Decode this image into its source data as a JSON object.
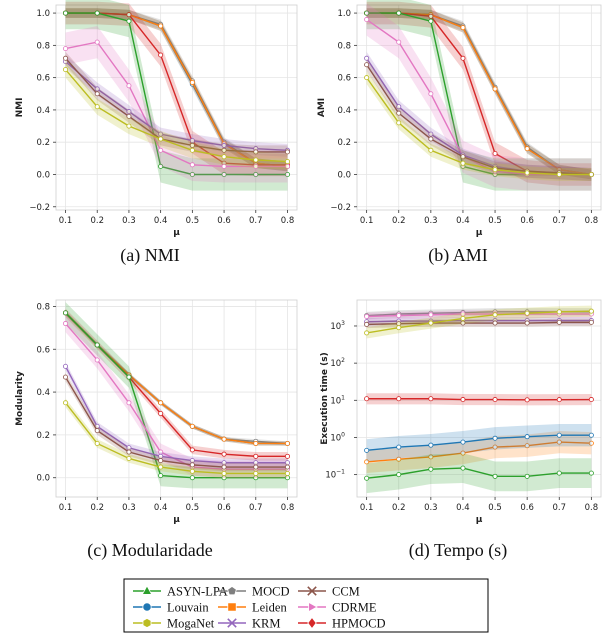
{
  "captions": [
    "(a)  NMI",
    "(b)  AMI",
    "(c)  Modularidade",
    "(d)  Tempo (s)"
  ],
  "legend": [
    {
      "name": "ASYN-LPA",
      "color": "#2ca02c",
      "marker": "triangle"
    },
    {
      "name": "Louvain",
      "color": "#1f77b4",
      "marker": "circle"
    },
    {
      "name": "MogaNet",
      "color": "#bcbd22",
      "marker": "hexagon"
    },
    {
      "name": "MOCD",
      "color": "#7f7f7f",
      "marker": "pentagon"
    },
    {
      "name": "Leiden",
      "color": "#ff7f0e",
      "marker": "square"
    },
    {
      "name": "KRM",
      "color": "#9467bd",
      "marker": "x"
    },
    {
      "name": "CCM",
      "color": "#8c564b",
      "marker": "x"
    },
    {
      "name": "CDRME",
      "color": "#e377c2",
      "marker": "triangle-right"
    },
    {
      "name": "HPMOCD",
      "color": "#d62728",
      "marker": "diamond"
    }
  ],
  "chart_data": [
    {
      "type": "line",
      "ylabel": "NMI",
      "xlabel": "μ",
      "scale": "linear",
      "x": [
        0.1,
        0.2,
        0.3,
        0.4,
        0.5,
        0.6,
        0.7,
        0.8
      ],
      "xticks": [
        "0.1",
        "0.2",
        "0.3",
        "0.4",
        "0.5",
        "0.6",
        "0.7",
        "0.8"
      ],
      "ylim": [
        -0.22,
        1.05
      ],
      "yticks": [
        {
          "v": -0.2,
          "t": "−0.2"
        },
        {
          "v": 0,
          "t": "0.0"
        },
        {
          "v": 0.2,
          "t": "0.2"
        },
        {
          "v": 0.4,
          "t": "0.4"
        },
        {
          "v": 0.6,
          "t": "0.6"
        },
        {
          "v": 0.8,
          "t": "0.8"
        },
        {
          "v": 1.0,
          "t": "1.0"
        }
      ],
      "series": [
        {
          "name": "MOCD",
          "values": [
            1.0,
            1.0,
            0.99,
            0.93,
            0.58,
            0.2,
            0.07,
            0.05
          ],
          "band": 0.03
        },
        {
          "name": "Louvain",
          "values": [
            1.0,
            1.0,
            0.99,
            0.92,
            0.56,
            0.19,
            0.07,
            0.05
          ],
          "band": 0.03
        },
        {
          "name": "Leiden",
          "values": [
            1.0,
            1.0,
            0.99,
            0.92,
            0.57,
            0.19,
            0.07,
            0.05
          ],
          "band": 0.03
        },
        {
          "name": "HPMOCD",
          "values": [
            1.0,
            1.0,
            0.99,
            0.74,
            0.2,
            0.07,
            0.06,
            0.06
          ],
          "band": 0.07
        },
        {
          "name": "ASYN-LPA",
          "values": [
            1.0,
            1.0,
            0.95,
            0.05,
            0.0,
            0.0,
            0.0,
            0.0
          ],
          "band": 0.1
        },
        {
          "name": "CDRME",
          "values": [
            0.78,
            0.82,
            0.55,
            0.15,
            0.06,
            0.05,
            0.05,
            0.05
          ],
          "band": 0.1
        },
        {
          "name": "KRM",
          "values": [
            0.7,
            0.53,
            0.39,
            0.25,
            0.21,
            0.18,
            0.16,
            0.15
          ],
          "band": 0.04
        },
        {
          "name": "CCM",
          "values": [
            0.72,
            0.5,
            0.36,
            0.22,
            0.18,
            0.15,
            0.14,
            0.14
          ],
          "band": 0.04
        },
        {
          "name": "MogaNet",
          "values": [
            0.65,
            0.42,
            0.3,
            0.22,
            0.15,
            0.11,
            0.09,
            0.08
          ],
          "band": 0.05
        }
      ]
    },
    {
      "type": "line",
      "ylabel": "AMI",
      "xlabel": "μ",
      "scale": "linear",
      "x": [
        0.1,
        0.2,
        0.3,
        0.4,
        0.5,
        0.6,
        0.7,
        0.8
      ],
      "xticks": [
        "0.1",
        "0.2",
        "0.3",
        "0.4",
        "0.5",
        "0.6",
        "0.7",
        "0.8"
      ],
      "ylim": [
        -0.22,
        1.05
      ],
      "yticks": [
        {
          "v": -0.2,
          "t": "−0.2"
        },
        {
          "v": 0,
          "t": "0.0"
        },
        {
          "v": 0.2,
          "t": "0.2"
        },
        {
          "v": 0.4,
          "t": "0.4"
        },
        {
          "v": 0.6,
          "t": "0.6"
        },
        {
          "v": 0.8,
          "t": "0.8"
        },
        {
          "v": 1.0,
          "t": "1.0"
        }
      ],
      "series": [
        {
          "name": "MOCD",
          "values": [
            1.0,
            1.0,
            0.99,
            0.92,
            0.54,
            0.17,
            0.03,
            0.0
          ],
          "band": 0.03
        },
        {
          "name": "Louvain",
          "values": [
            1.0,
            1.0,
            0.99,
            0.91,
            0.53,
            0.16,
            0.03,
            0.0
          ],
          "band": 0.03
        },
        {
          "name": "Leiden",
          "values": [
            1.0,
            1.0,
            0.99,
            0.91,
            0.53,
            0.16,
            0.03,
            0.0
          ],
          "band": 0.03
        },
        {
          "name": "HPMOCD",
          "values": [
            1.0,
            1.0,
            0.98,
            0.72,
            0.13,
            0.02,
            0.0,
            0.0
          ],
          "band": 0.07
        },
        {
          "name": "ASYN-LPA",
          "values": [
            1.0,
            1.0,
            0.95,
            0.05,
            0.0,
            0.0,
            0.0,
            0.0
          ],
          "band": 0.1
        },
        {
          "name": "CDRME",
          "values": [
            0.96,
            0.82,
            0.5,
            0.11,
            0.02,
            0.0,
            0.0,
            0.0
          ],
          "band": 0.1
        },
        {
          "name": "KRM",
          "values": [
            0.72,
            0.42,
            0.25,
            0.12,
            0.05,
            0.02,
            0.01,
            0.0
          ],
          "band": 0.04
        },
        {
          "name": "CCM",
          "values": [
            0.68,
            0.38,
            0.22,
            0.11,
            0.04,
            0.02,
            0.01,
            0.0
          ],
          "band": 0.04
        },
        {
          "name": "MogaNet",
          "values": [
            0.6,
            0.32,
            0.15,
            0.07,
            0.03,
            0.01,
            0.0,
            0.0
          ],
          "band": 0.04
        }
      ]
    },
    {
      "type": "line",
      "ylabel": "Modularity",
      "xlabel": "μ",
      "scale": "linear",
      "x": [
        0.1,
        0.2,
        0.3,
        0.4,
        0.5,
        0.6,
        0.7,
        0.8
      ],
      "xticks": [
        "0.1",
        "0.2",
        "0.3",
        "0.4",
        "0.5",
        "0.6",
        "0.7",
        "0.8"
      ],
      "ylim": [
        -0.09,
        0.83
      ],
      "yticks": [
        {
          "v": 0,
          "t": "0.0"
        },
        {
          "v": 0.2,
          "t": "0.2"
        },
        {
          "v": 0.4,
          "t": "0.4"
        },
        {
          "v": 0.6,
          "t": "0.6"
        },
        {
          "v": 0.8,
          "t": "0.8"
        }
      ],
      "series": [
        {
          "name": "MOCD",
          "values": [
            0.77,
            0.62,
            0.48,
            0.35,
            0.24,
            0.18,
            0.17,
            0.16
          ],
          "band": 0.01
        },
        {
          "name": "Louvain",
          "values": [
            0.77,
            0.62,
            0.48,
            0.35,
            0.24,
            0.18,
            0.16,
            0.16
          ],
          "band": 0.01
        },
        {
          "name": "Leiden",
          "values": [
            0.77,
            0.62,
            0.48,
            0.35,
            0.24,
            0.18,
            0.16,
            0.16
          ],
          "band": 0.01
        },
        {
          "name": "HPMOCD",
          "values": [
            0.77,
            0.62,
            0.47,
            0.3,
            0.13,
            0.11,
            0.1,
            0.1
          ],
          "band": 0.02
        },
        {
          "name": "ASYN-LPA",
          "values": [
            0.77,
            0.62,
            0.47,
            0.01,
            0.0,
            0.0,
            0.0,
            0.0
          ],
          "band": 0.05
        },
        {
          "name": "CDRME",
          "values": [
            0.72,
            0.55,
            0.35,
            0.12,
            0.05,
            0.04,
            0.04,
            0.04
          ],
          "band": 0.04
        },
        {
          "name": "KRM",
          "values": [
            0.52,
            0.24,
            0.14,
            0.1,
            0.08,
            0.07,
            0.07,
            0.07
          ],
          "band": 0.02
        },
        {
          "name": "CCM",
          "values": [
            0.47,
            0.22,
            0.12,
            0.08,
            0.06,
            0.05,
            0.05,
            0.05
          ],
          "band": 0.02
        },
        {
          "name": "MogaNet",
          "values": [
            0.35,
            0.16,
            0.09,
            0.05,
            0.03,
            0.02,
            0.02,
            0.02
          ],
          "band": 0.02
        }
      ]
    },
    {
      "type": "line",
      "ylabel": "Execution time (s)",
      "xlabel": "μ",
      "scale": "log",
      "x": [
        0.1,
        0.2,
        0.3,
        0.4,
        0.5,
        0.6,
        0.7,
        0.8
      ],
      "xticks": [
        "0.1",
        "0.2",
        "0.3",
        "0.4",
        "0.5",
        "0.6",
        "0.7",
        "0.8"
      ],
      "ylim": [
        0.025,
        5000
      ],
      "yticks": [
        {
          "v": 0.1,
          "t": "10",
          "e": "−1"
        },
        {
          "v": 1,
          "t": "10",
          "e": "0"
        },
        {
          "v": 10,
          "t": "10",
          "e": "1"
        },
        {
          "v": 100,
          "t": "10",
          "e": "2"
        },
        {
          "v": 1000,
          "t": "10",
          "e": "3"
        }
      ],
      "series": [
        {
          "name": "MOCD",
          "values": [
            1900,
            2100,
            2200,
            2300,
            2400,
            2400,
            2400,
            2400
          ],
          "band": 0.1
        },
        {
          "name": "Leiden",
          "values": [
            0.22,
            0.26,
            0.3,
            0.38,
            0.55,
            0.6,
            0.75,
            0.7
          ],
          "band": 0.3
        },
        {
          "name": "Louvain",
          "values": [
            0.45,
            0.55,
            0.62,
            0.75,
            0.95,
            1.05,
            1.15,
            1.15
          ],
          "band": 0.3
        },
        {
          "name": "HPMOCD",
          "values": [
            11,
            11,
            11,
            10.5,
            10.5,
            10.3,
            10.4,
            10.5
          ],
          "band": 0.15
        },
        {
          "name": "ASYN-LPA",
          "values": [
            0.08,
            0.1,
            0.14,
            0.15,
            0.09,
            0.09,
            0.11,
            0.11
          ],
          "band": 0.4
        },
        {
          "name": "CDRME",
          "values": [
            1800,
            1900,
            2000,
            2100,
            2100,
            2100,
            2100,
            2100
          ],
          "band": 0.1
        },
        {
          "name": "KRM",
          "values": [
            1300,
            1350,
            1350,
            1400,
            1400,
            1400,
            1400,
            1400
          ],
          "band": 0.1
        },
        {
          "name": "CCM",
          "values": [
            1100,
            1150,
            1200,
            1200,
            1200,
            1200,
            1250,
            1250
          ],
          "band": 0.1
        },
        {
          "name": "MogaNet",
          "values": [
            650,
            900,
            1200,
            1600,
            2000,
            2200,
            2400,
            2500
          ],
          "band": 0.15
        }
      ]
    }
  ]
}
